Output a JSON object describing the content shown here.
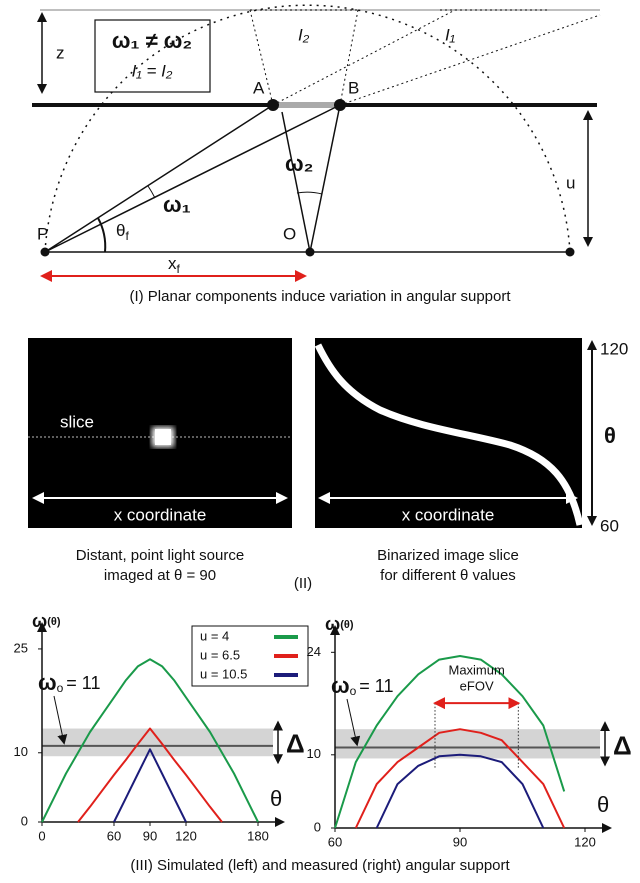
{
  "figure": {
    "part1": {
      "box_line1": "ω₁ ≠ ω₂",
      "box_line2": "I₁ = I₂",
      "z": "z",
      "u": "u",
      "A": "A",
      "B": "B",
      "P": "P",
      "O": "O",
      "I2": "I₂",
      "I1": "I₁",
      "omega1": "ω₁",
      "omega2": "ω₂",
      "theta_f": {
        "symbol": "θ",
        "sub": "f"
      },
      "x_f": {
        "symbol": "x",
        "sub": "f"
      },
      "caption": "(I) Planar components induce variation in angular support"
    },
    "part2": {
      "left": {
        "slice": "slice",
        "axis": "x coordinate",
        "caption": [
          "Distant, point light source",
          "imaged at θ = 90"
        ]
      },
      "right": {
        "axis": "x coordinate",
        "scale_top": "120",
        "scale_mid": "θ",
        "scale_bottom": "60",
        "caption": [
          "Binarized image slice",
          "for different θ values"
        ]
      },
      "label": "(II)"
    },
    "caption3": "(III) Simulated (left) and measured (right) angular support"
  },
  "chart_data": [
    {
      "type": "line",
      "x": [
        0,
        10,
        20,
        30,
        40,
        50,
        60,
        70,
        80,
        90,
        100,
        110,
        120,
        130,
        140,
        150,
        160,
        170,
        180
      ],
      "series": [
        {
          "name": "u = 4",
          "color": "#1a9a4a",
          "values": [
            0,
            3.5,
            7,
            10,
            13,
            15.5,
            18,
            20.5,
            22.5,
            23.5,
            22.5,
            20.5,
            18,
            15.5,
            13,
            10,
            7,
            3.5,
            0
          ]
        },
        {
          "name": "u = 6.5",
          "color": "#e0201b",
          "values": [
            null,
            null,
            null,
            0,
            2.2,
            4.5,
            6.8,
            9,
            11.3,
            13.5,
            11.3,
            9,
            6.8,
            4.5,
            2.2,
            0,
            null,
            null,
            null
          ]
        },
        {
          "name": "u = 10.5",
          "color": "#1c1c7a",
          "values": [
            null,
            null,
            null,
            null,
            null,
            null,
            0,
            3.5,
            7,
            10.5,
            7,
            3.5,
            0,
            null,
            null,
            null,
            null,
            null,
            null
          ]
        }
      ],
      "xlim": [
        0,
        180
      ],
      "ylim": [
        0,
        26
      ],
      "xticks": [
        0,
        60,
        90,
        120,
        180
      ],
      "yticks": [
        0,
        10,
        25
      ],
      "y_label": {
        "symbol": "ω",
        "sub": "(θ)"
      },
      "x_label": "θ",
      "reference": {
        "symbol": "ω",
        "sub": "o",
        "text": "= 11",
        "value": 11
      },
      "band": [
        9.5,
        13.5
      ],
      "band_label": "Δ",
      "legend": "top-right"
    },
    {
      "type": "line",
      "x": [
        60,
        65,
        70,
        75,
        80,
        85,
        90,
        95,
        100,
        105,
        110,
        115,
        120
      ],
      "series": [
        {
          "name": "u = 4",
          "color": "#1a9a4a",
          "values": [
            0,
            9,
            14,
            18,
            21,
            23,
            23.5,
            23,
            21,
            18,
            14,
            5,
            null
          ]
        },
        {
          "name": "u = 6.5",
          "color": "#e0201b",
          "values": [
            null,
            0,
            6,
            9,
            11,
            13,
            13.5,
            13,
            12,
            9,
            6,
            0,
            null
          ]
        },
        {
          "name": "u = 10.5",
          "color": "#1c1c7a",
          "values": [
            null,
            null,
            0,
            6,
            8.5,
            9.8,
            10,
            9.8,
            9,
            6,
            0,
            null,
            null
          ]
        }
      ],
      "xlim": [
        60,
        120
      ],
      "ylim": [
        0,
        25
      ],
      "xticks": [
        60,
        90,
        120
      ],
      "yticks": [
        0,
        10,
        24
      ],
      "y_label": {
        "symbol": "ω",
        "sub": "(θ)"
      },
      "x_label": "θ",
      "reference": {
        "symbol": "ω",
        "sub": "o",
        "text": "= 11",
        "value": 11
      },
      "band": [
        9.5,
        13.5
      ],
      "band_label": "Δ",
      "efov": {
        "range": [
          84,
          104
        ],
        "label": [
          "Maximum",
          "eFOV"
        ],
        "color": "#e0201b"
      }
    }
  ]
}
